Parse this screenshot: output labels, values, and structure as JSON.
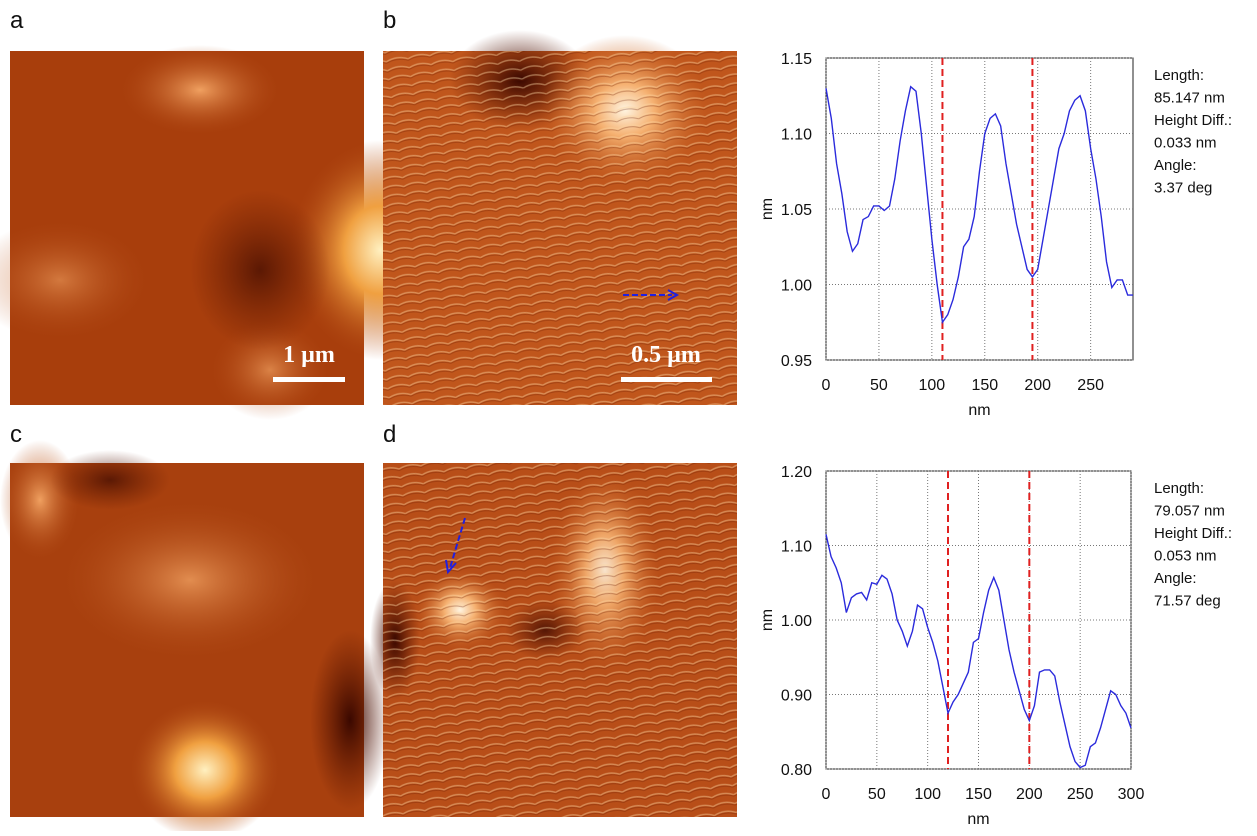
{
  "panels": [
    {
      "label": "a",
      "scale_bar": "1 µm"
    },
    {
      "label": "b",
      "scale_bar": "0.5 µm"
    },
    {
      "label": "c"
    },
    {
      "label": "d"
    }
  ],
  "chart_data": [
    {
      "type": "line",
      "xlabel": "nm",
      "ylabel": "nm",
      "xlim": [
        0,
        290
      ],
      "ylim": [
        0.95,
        1.15
      ],
      "xticks": [
        0,
        50,
        100,
        150,
        200,
        250
      ],
      "yticks": [
        0.95,
        {
          "value": 1,
          "label": "1.00"
        },
        1.05,
        {
          "value": 1.1,
          "label": "1.10"
        },
        1.15
      ],
      "grid": true,
      "color": "#2b2bdc",
      "cursor_color": "#e02020",
      "cursors": [
        110,
        195
      ],
      "annotations": [
        "Length:",
        "85.147 nm",
        "Height Diff.:",
        "0.033 nm",
        "Angle:",
        "3.37 deg"
      ],
      "x": [
        0,
        5,
        10,
        15,
        20,
        25,
        30,
        35,
        40,
        45,
        50,
        55,
        60,
        65,
        70,
        75,
        80,
        85,
        90,
        95,
        100,
        105,
        110,
        115,
        120,
        125,
        130,
        135,
        140,
        145,
        150,
        155,
        160,
        165,
        170,
        175,
        180,
        185,
        190,
        195,
        200,
        205,
        210,
        215,
        220,
        225,
        230,
        235,
        240,
        245,
        250,
        255,
        260,
        265,
        270,
        275,
        280,
        285,
        290
      ],
      "values": [
        1.13,
        1.11,
        1.08,
        1.06,
        1.035,
        1.022,
        1.027,
        1.043,
        1.045,
        1.052,
        1.052,
        1.049,
        1.052,
        1.07,
        1.095,
        1.115,
        1.131,
        1.128,
        1.1,
        1.065,
        1.03,
        1.0,
        0.975,
        0.98,
        0.99,
        1.005,
        1.025,
        1.03,
        1.045,
        1.075,
        1.1,
        1.11,
        1.113,
        1.105,
        1.08,
        1.06,
        1.04,
        1.025,
        1.01,
        1.005,
        1.01,
        1.03,
        1.05,
        1.07,
        1.09,
        1.1,
        1.115,
        1.122,
        1.125,
        1.115,
        1.09,
        1.07,
        1.045,
        1.015,
        0.998,
        1.003,
        1.003,
        0.993,
        0.993
      ]
    },
    {
      "type": "line",
      "xlabel": "nm",
      "ylabel": "nm",
      "xlim": [
        0,
        300
      ],
      "ylim": [
        0.8,
        1.2
      ],
      "xticks": [
        0,
        50,
        100,
        150,
        200,
        250,
        300
      ],
      "yticks": [
        {
          "value": 0.8,
          "label": "0.80"
        },
        {
          "value": 0.9,
          "label": "0.90"
        },
        {
          "value": 1,
          "label": "1.00"
        },
        {
          "value": 1.1,
          "label": "1.10"
        },
        {
          "value": 1.2,
          "label": "1.20"
        }
      ],
      "grid": true,
      "color": "#2b2bdc",
      "cursor_color": "#e02020",
      "cursors": [
        120,
        200
      ],
      "annotations": [
        "Length:",
        "79.057 nm",
        "Height Diff.:",
        "0.053 nm",
        "Angle:",
        "71.57 deg"
      ],
      "x": [
        0,
        5,
        10,
        15,
        20,
        25,
        30,
        35,
        40,
        45,
        50,
        55,
        60,
        65,
        70,
        75,
        80,
        85,
        90,
        95,
        100,
        105,
        110,
        115,
        120,
        125,
        130,
        135,
        140,
        145,
        150,
        155,
        160,
        165,
        170,
        175,
        180,
        185,
        190,
        195,
        200,
        205,
        210,
        215,
        220,
        225,
        230,
        235,
        240,
        245,
        250,
        255,
        260,
        265,
        270,
        275,
        280,
        285,
        290,
        295,
        300
      ],
      "values": [
        1.115,
        1.085,
        1.07,
        1.05,
        1.01,
        1.03,
        1.035,
        1.037,
        1.027,
        1.05,
        1.048,
        1.06,
        1.055,
        1.035,
        1.0,
        0.985,
        0.965,
        0.985,
        1.02,
        1.015,
        0.99,
        0.97,
        0.945,
        0.91,
        0.875,
        0.89,
        0.9,
        0.915,
        0.93,
        0.97,
        0.975,
        1.01,
        1.04,
        1.057,
        1.04,
        1.0,
        0.96,
        0.93,
        0.905,
        0.88,
        0.865,
        0.885,
        0.93,
        0.933,
        0.933,
        0.925,
        0.89,
        0.86,
        0.83,
        0.81,
        0.802,
        0.805,
        0.83,
        0.835,
        0.855,
        0.88,
        0.905,
        0.9,
        0.885,
        0.875,
        0.855
      ]
    }
  ]
}
